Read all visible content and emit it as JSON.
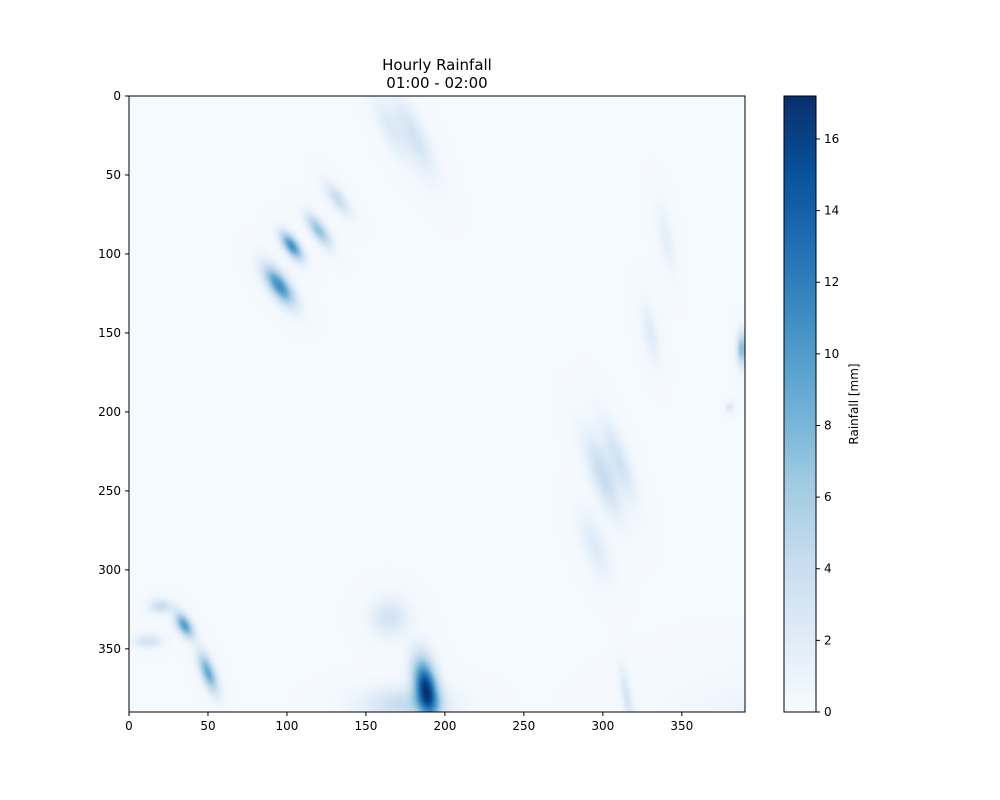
{
  "chart_data": {
    "type": "heatmap",
    "title": "Hourly Rainfall",
    "subtitle": "01:00 - 02:00",
    "xlabel": "",
    "ylabel": "",
    "xlim": [
      0,
      390
    ],
    "ylim": [
      390,
      0
    ],
    "x_ticks": [
      0,
      50,
      100,
      150,
      200,
      250,
      300,
      350
    ],
    "y_ticks": [
      0,
      50,
      100,
      150,
      200,
      250,
      300,
      350
    ],
    "colorbar": {
      "label": "Rainfall [mm]",
      "range": [
        0,
        17.2
      ],
      "ticks": [
        0,
        2,
        4,
        6,
        8,
        10,
        12,
        14,
        16
      ],
      "colormap": "Blues",
      "colors": [
        "#f7fbff",
        "#deebf7",
        "#c6dbef",
        "#9ecae1",
        "#6baed6",
        "#4292c6",
        "#2171b5",
        "#08519c",
        "#08306b"
      ]
    },
    "background_value": 0.2,
    "rain_cells": [
      {
        "x": 95,
        "y": 120,
        "peak": 11,
        "sx": 4,
        "sy": 10,
        "angle": -35
      },
      {
        "x": 103,
        "y": 95,
        "peak": 11,
        "sx": 3,
        "sy": 7,
        "angle": -35
      },
      {
        "x": 120,
        "y": 85,
        "peak": 7,
        "sx": 3,
        "sy": 8,
        "angle": -35
      },
      {
        "x": 132,
        "y": 65,
        "peak": 4,
        "sx": 3,
        "sy": 8,
        "angle": -35
      },
      {
        "x": 180,
        "y": 25,
        "peak": 3,
        "sx": 5,
        "sy": 18,
        "angle": -25
      },
      {
        "x": 165,
        "y": 20,
        "peak": 2,
        "sx": 4,
        "sy": 15,
        "angle": -25
      },
      {
        "x": 188,
        "y": 375,
        "peak": 16,
        "sx": 5,
        "sy": 13,
        "angle": -10
      },
      {
        "x": 165,
        "y": 330,
        "peak": 3,
        "sx": 8,
        "sy": 8,
        "angle": 0
      },
      {
        "x": 175,
        "y": 385,
        "peak": 4,
        "sx": 18,
        "sy": 7,
        "angle": 0
      },
      {
        "x": 35,
        "y": 335,
        "peak": 10,
        "sx": 3,
        "sy": 6,
        "angle": -30
      },
      {
        "x": 50,
        "y": 365,
        "peak": 9,
        "sx": 3,
        "sy": 9,
        "angle": -20
      },
      {
        "x": 20,
        "y": 323,
        "peak": 4,
        "sx": 5,
        "sy": 3,
        "angle": 0
      },
      {
        "x": 12,
        "y": 345,
        "peak": 3,
        "sx": 6,
        "sy": 3,
        "angle": 0
      },
      {
        "x": 300,
        "y": 240,
        "peak": 4,
        "sx": 5,
        "sy": 18,
        "angle": -20
      },
      {
        "x": 310,
        "y": 230,
        "peak": 3,
        "sx": 4,
        "sy": 18,
        "angle": -20
      },
      {
        "x": 295,
        "y": 285,
        "peak": 2,
        "sx": 5,
        "sy": 14,
        "angle": -20
      },
      {
        "x": 388,
        "y": 160,
        "peak": 8,
        "sx": 2,
        "sy": 7,
        "angle": 0
      },
      {
        "x": 380,
        "y": 197,
        "peak": 3,
        "sx": 1.5,
        "sy": 2,
        "angle": 0
      },
      {
        "x": 330,
        "y": 150,
        "peak": 2,
        "sx": 3,
        "sy": 12,
        "angle": -10
      },
      {
        "x": 340,
        "y": 90,
        "peak": 1.5,
        "sx": 3,
        "sy": 14,
        "angle": -10
      },
      {
        "x": 315,
        "y": 380,
        "peak": 3,
        "sx": 2,
        "sy": 12,
        "angle": -10
      },
      {
        "x": 410,
        "y": 400,
        "peak": 1,
        "sx": 40,
        "sy": 20,
        "angle": 0
      }
    ]
  }
}
